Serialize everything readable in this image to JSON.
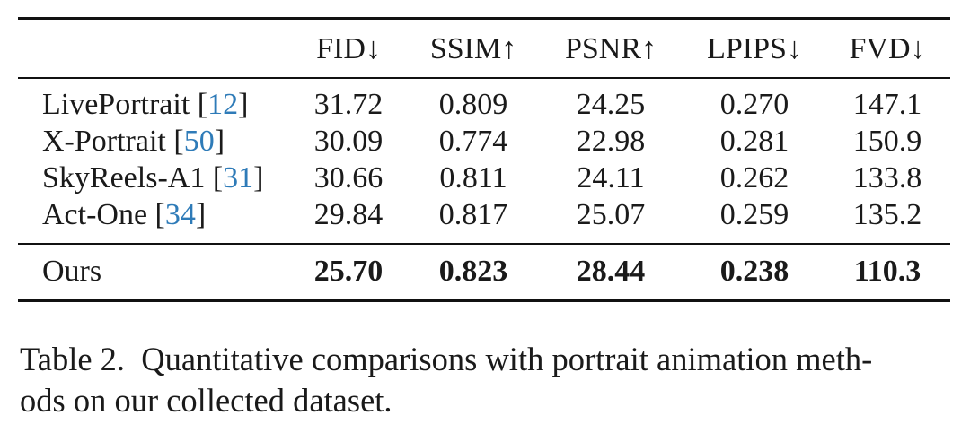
{
  "table": {
    "headers": [
      "FID↓",
      "SSIM↑",
      "PSNR↑",
      "LPIPS↓",
      "FVD↓"
    ],
    "rows": [
      {
        "method": "LivePortrait [",
        "ref": "12",
        "close": "]",
        "values": [
          "31.72",
          "0.809",
          "24.25",
          "0.270",
          "147.1"
        ]
      },
      {
        "method": "X-Portrait [",
        "ref": "50",
        "close": "]",
        "values": [
          "30.09",
          "0.774",
          "22.98",
          "0.281",
          "150.9"
        ]
      },
      {
        "method": "SkyReels-A1 [",
        "ref": "31",
        "close": "]",
        "values": [
          "30.66",
          "0.811",
          "24.11",
          "0.262",
          "133.8"
        ]
      },
      {
        "method": "Act-One [",
        "ref": "34",
        "close": "]",
        "values": [
          "29.84",
          "0.817",
          "25.07",
          "0.259",
          "135.2"
        ]
      }
    ],
    "ours": {
      "method": "Ours",
      "values": [
        "25.70",
        "0.823",
        "28.44",
        "0.238",
        "110.3"
      ]
    }
  },
  "caption": {
    "line1": "Table 2.  Quantitative comparisons with portrait animation meth-",
    "line2": "ods on our collected dataset."
  },
  "colors": {
    "citation": "#2e7bb8"
  }
}
